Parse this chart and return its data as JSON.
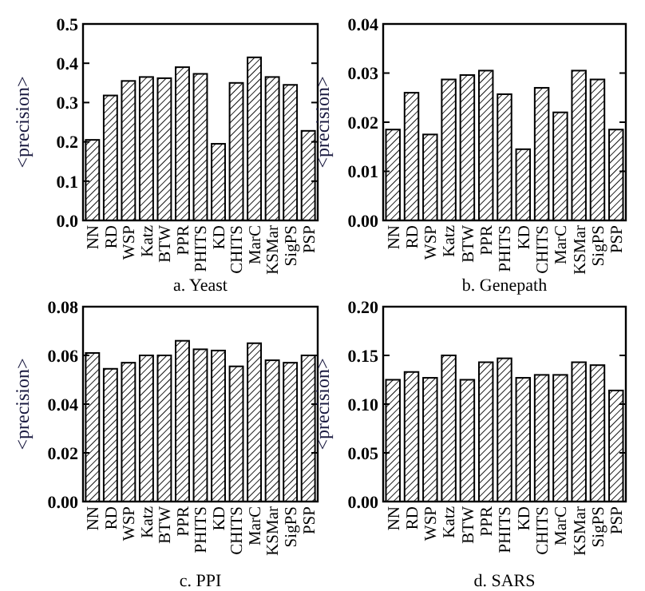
{
  "chart_data": [
    {
      "type": "bar",
      "xlabel": "a. Yeast",
      "ylabel": "<precision>",
      "categories": [
        "NN",
        "RD",
        "WSP",
        "Katz",
        "BTW",
        "PPR",
        "PHITS",
        "KD",
        "CHITS",
        "MarC",
        "KSMar",
        "SigPS",
        "PSP"
      ],
      "values": [
        0.205,
        0.318,
        0.355,
        0.365,
        0.362,
        0.39,
        0.373,
        0.195,
        0.35,
        0.415,
        0.365,
        0.345,
        0.228
      ],
      "color": "#000000",
      "ylim": [
        0,
        0.5
      ],
      "yticks": [
        {
          "value": 0,
          "label": "0.0"
        },
        0.1,
        0.2,
        0.3,
        0.4,
        0.5
      ],
      "grid": false
    },
    {
      "type": "bar",
      "xlabel": "b. Genepath",
      "ylabel": "<precision>",
      "categories": [
        "NN",
        "RD",
        "WSP",
        "Katz",
        "BTW",
        "PPR",
        "PHITS",
        "KD",
        "CHITS",
        "MarC",
        "KSMar",
        "SigPS",
        "PSP"
      ],
      "values": [
        0.0185,
        0.026,
        0.0175,
        0.0287,
        0.0296,
        0.0305,
        0.0257,
        0.0145,
        0.027,
        0.022,
        0.0305,
        0.0287,
        0.0185
      ],
      "color": "#000000",
      "ylim": [
        0,
        0.04
      ],
      "yticks": [
        {
          "value": 0,
          "label": "0.00"
        },
        0.01,
        0.02,
        0.03,
        0.04
      ],
      "grid": false
    },
    {
      "type": "bar",
      "xlabel": "c. PPI",
      "ylabel": "<precision>",
      "categories": [
        "NN",
        "RD",
        "WSP",
        "Katz",
        "BTW",
        "PPR",
        "PHITS",
        "KD",
        "CHITS",
        "MarC",
        "KSMar",
        "SigPS",
        "PSP"
      ],
      "values": [
        0.061,
        0.0545,
        0.057,
        0.06,
        0.06,
        0.066,
        0.0625,
        0.062,
        0.0555,
        0.065,
        0.058,
        0.057,
        0.06
      ],
      "color": "#000000",
      "ylim": [
        0,
        0.08
      ],
      "yticks": [
        {
          "value": 0,
          "label": "0.00"
        },
        {
          "value": 0.02,
          "label": "0.02"
        },
        {
          "value": 0.04,
          "label": "0.04"
        },
        {
          "value": 0.06,
          "label": "0.06"
        },
        {
          "value": 0.08,
          "label": "0.08"
        }
      ],
      "grid": false
    },
    {
      "type": "bar",
      "xlabel": "d. SARS",
      "ylabel": "<precision>",
      "categories": [
        "NN",
        "RD",
        "WSP",
        "Katz",
        "BTW",
        "PPR",
        "PHITS",
        "KD",
        "CHITS",
        "MarC",
        "KSMar",
        "SigPS",
        "PSP"
      ],
      "values": [
        0.125,
        0.133,
        0.127,
        0.15,
        0.125,
        0.143,
        0.147,
        0.127,
        0.13,
        0.13,
        0.143,
        0.14,
        0.114
      ],
      "color": "#000000",
      "ylim": [
        0,
        0.2
      ],
      "yticks": [
        {
          "value": 0,
          "label": "0.00"
        },
        {
          "value": 0.05,
          "label": "0.05"
        },
        {
          "value": 0.1,
          "label": "0.10"
        },
        {
          "value": 0.15,
          "label": "0.15"
        },
        {
          "value": 0.2,
          "label": "0.20"
        }
      ],
      "grid": false
    }
  ]
}
